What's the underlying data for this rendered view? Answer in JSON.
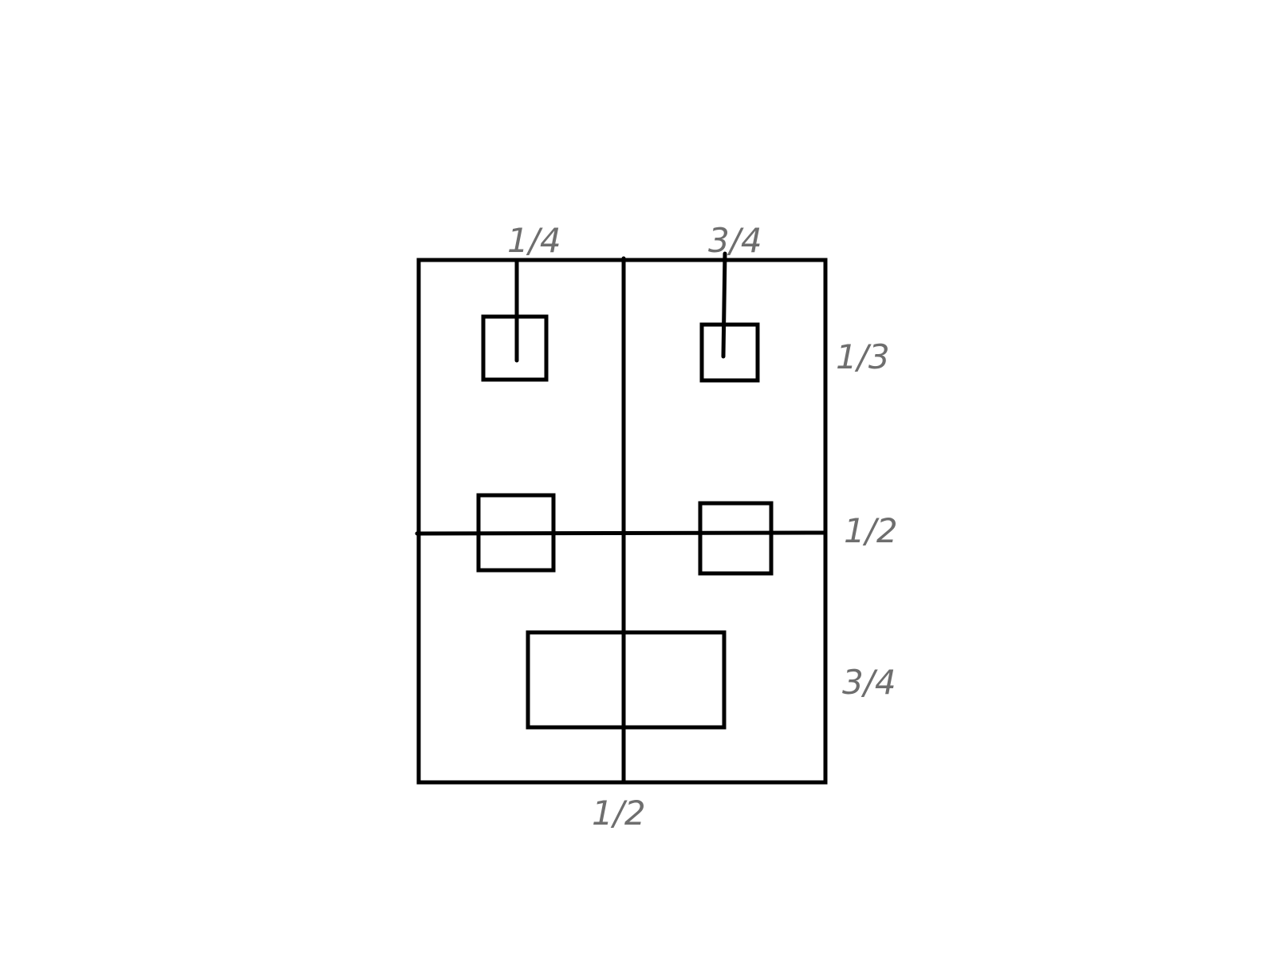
{
  "diagram": {
    "labels": {
      "top_left": "1/4",
      "top_right": "3/4",
      "right_upper": "1/3",
      "right_middle": "1/2",
      "right_lower": "3/4",
      "bottom": "1/2"
    },
    "colors": {
      "stroke": "#000000",
      "label": "#6e6e6e",
      "background": "#ffffff"
    }
  }
}
